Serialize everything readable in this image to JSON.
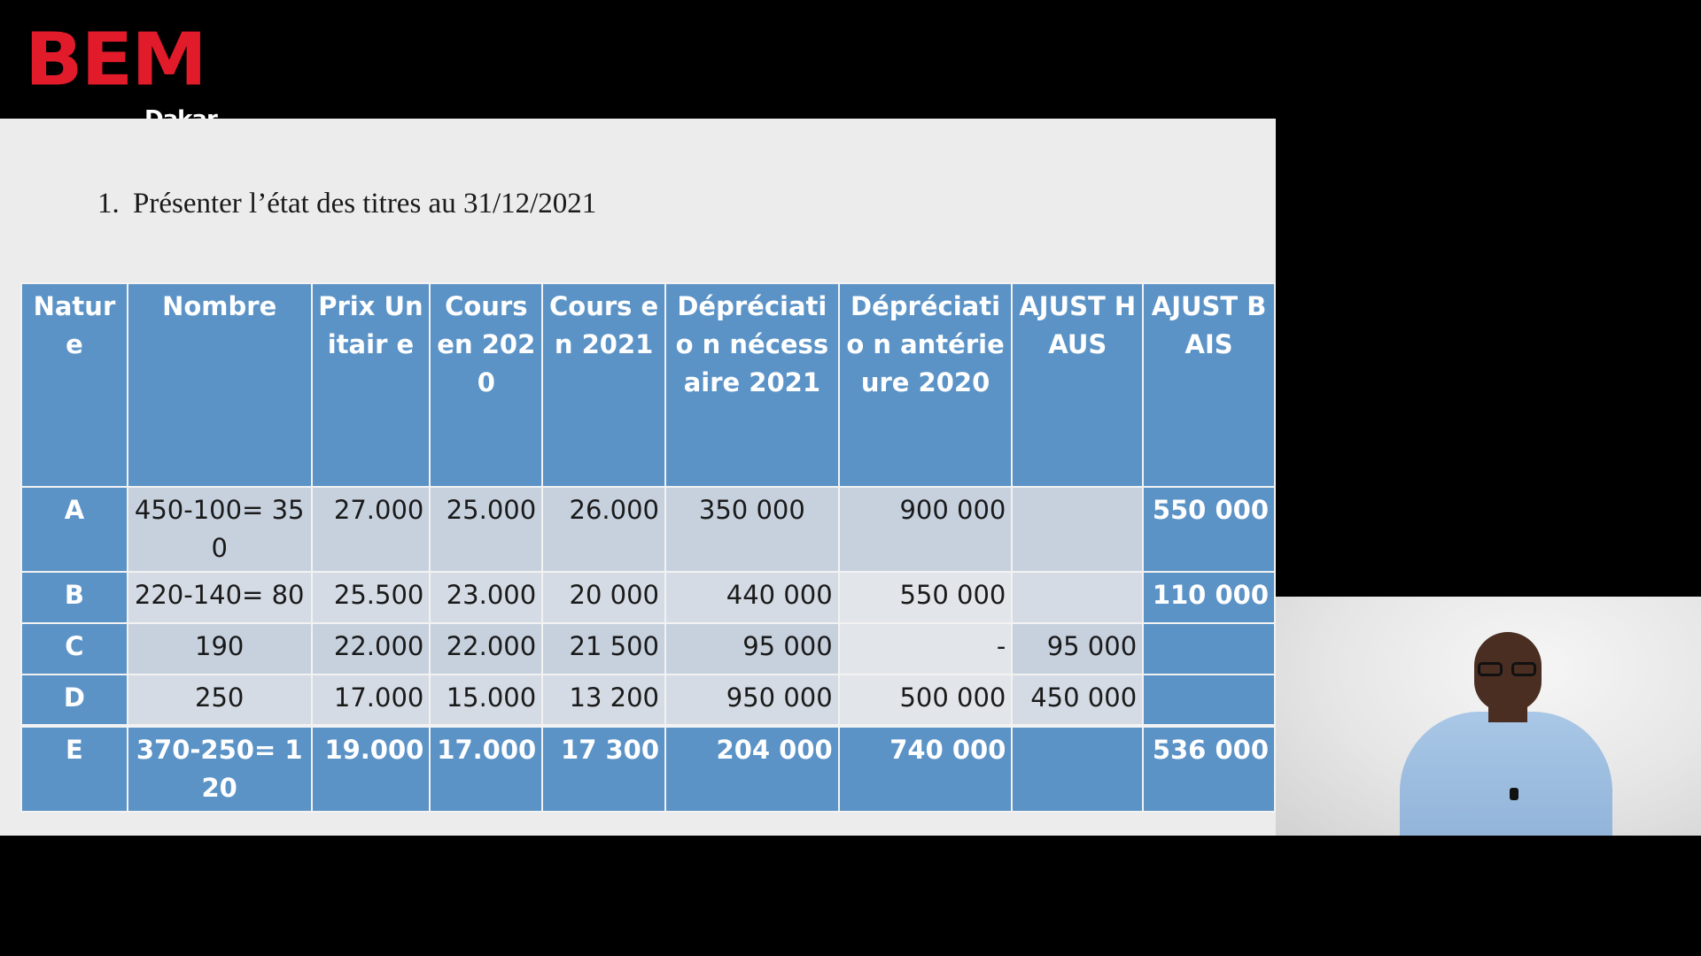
{
  "logo": {
    "brand": "BEM",
    "city": "Dakar"
  },
  "slide": {
    "title_number": "1.",
    "title_text": "Présenter l’état des titres au 31/12/2021",
    "table": {
      "headers": [
        "Nature",
        "Nombre",
        "Prix Unitair e",
        "Cours en 2020",
        "Cours en 2021",
        "Dépréciatio n nécessaire 2021",
        "Dépréciatio n antérieure 2020",
        "AJUST HAUS",
        "AJUST BAIS"
      ],
      "rows": [
        {
          "nature": "A",
          "nombre": "450-100= 350",
          "prix": "27.000",
          "cours2020": "25.000",
          "cours2021": "26.000",
          "dep_nec": "350 000",
          "dep_ant": "900 000",
          "haus": "",
          "bais": "550 000"
        },
        {
          "nature": "B",
          "nombre": "220-140= 80",
          "prix": "25.500",
          "cours2020": "23.000",
          "cours2021": "20 000",
          "dep_nec": "440 000",
          "dep_ant": "550 000",
          "haus": "",
          "bais": "110 000"
        },
        {
          "nature": "C",
          "nombre": "190",
          "prix": "22.000",
          "cours2020": "22.000",
          "cours2021": "21 500",
          "dep_nec": "95 000",
          "dep_ant": "-",
          "haus": "95 000",
          "bais": ""
        },
        {
          "nature": "D",
          "nombre": "250",
          "prix": "17.000",
          "cours2020": "15.000",
          "cours2021": "13 200",
          "dep_nec": "950 000",
          "dep_ant": "500 000",
          "haus": "450 000",
          "bais": ""
        },
        {
          "nature": "E",
          "nombre": "370-250= 120",
          "prix": "19.000",
          "cours2020": "17.000",
          "cours2021": "17 300",
          "dep_nec": "204 000",
          "dep_ant": "740 000",
          "haus": "",
          "bais": "536 000"
        }
      ]
    }
  },
  "colors": {
    "brand_red": "#e21b2b",
    "header_blue": "#5b93c7",
    "slide_bg": "#ececec"
  }
}
